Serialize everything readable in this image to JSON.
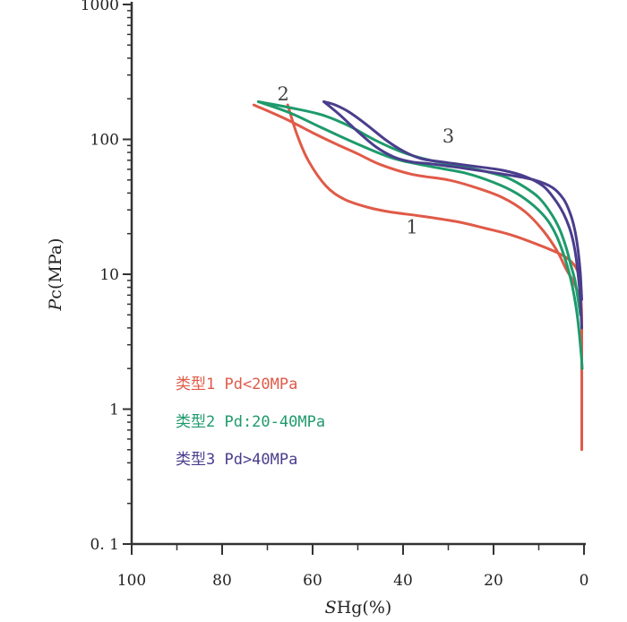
{
  "chart_data": {
    "type": "line",
    "xlabel_italic": "S",
    "xlabel_rest": "Hg(%)",
    "ylabel_italic": "P",
    "ylabel_rest": "c(MPa)",
    "x_reversed": true,
    "xlim": [
      100,
      0
    ],
    "ylim": [
      0.1,
      1000
    ],
    "y_scale": "log",
    "grid": false,
    "legend_placement": "inside-lower-left",
    "x_ticks": [
      "100",
      "80",
      "60",
      "40",
      "20",
      "0"
    ],
    "x_tick_values": [
      100,
      80,
      60,
      40,
      20,
      0
    ],
    "y_ticks": [
      "0. 1",
      "1",
      "10",
      "100",
      "1000"
    ],
    "y_tick_values": [
      0.1,
      1,
      10,
      100,
      1000
    ],
    "series": [
      {
        "name": "类型1 Pd<20MPa",
        "label": "1",
        "label_at": [
          38,
          20
        ],
        "color": "#e05a48",
        "branches": [
          {
            "x": [
              0.5,
              0.5,
              0.6,
              0.8,
              1.2,
              2,
              3.5,
              6,
              10,
              16,
              22,
              28,
              36,
              43,
              48,
              53,
              57,
              61,
              63.5,
              65.5
            ],
            "y": [
              0.5,
              4,
              6,
              8,
              10,
              11.5,
              13,
              14.5,
              16.5,
              19.5,
              22,
              24.5,
              27,
              29,
              31.5,
              36,
              45,
              70,
              110,
              180
            ]
          },
          {
            "x": [
              73,
              66,
              60,
              55,
              50,
              45,
              38,
              30,
              24,
              18,
              13,
              9,
              6,
              4,
              2.5,
              1.5,
              1
            ],
            "y": [
              180,
              142,
              112,
              93,
              78,
              65,
              55,
              50,
              44,
              37,
              29,
              21,
              15,
              11,
              9,
              7.5,
              6
            ]
          }
        ]
      },
      {
        "name": "类型2 Pd:20-40MPa",
        "label": "2",
        "label_at": [
          66.5,
          195
        ],
        "color": "#1e9a6c",
        "branches": [
          {
            "x": [
              72,
              65,
              58,
              50,
              42,
              34,
              26,
              20,
              15,
              11,
              8,
              6,
              4.5,
              3.2,
              2.2,
              1.5,
              1,
              0.6,
              0.4
            ],
            "y": [
              190,
              157,
              122,
              92,
              72,
              63,
              56,
              48,
              40,
              32,
              25,
              19,
              14,
              10,
              7,
              5,
              3.5,
              2.5,
              2
            ]
          },
          {
            "x": [
              72,
              65,
              58,
              52,
              46,
              40,
              34,
              28,
              22,
              17,
              13,
              10,
              7.5,
              5.5,
              4,
              3,
              2,
              1.3,
              0.8
            ],
            "y": [
              190,
              172,
              152,
              126,
              98,
              80,
              70,
              64,
              58,
              52,
              44,
              37,
              29,
              22,
              16,
              12,
              9,
              6.5,
              5
            ]
          }
        ]
      },
      {
        "name": "类型3 Pd>40MPa",
        "label": "3",
        "label_at": [
          30,
          95
        ],
        "color": "#4a3d8c",
        "branches": [
          {
            "x": [
              57.5,
              55,
              52,
              48,
              44,
              40,
              36,
              30,
              24,
              18,
              13,
              9,
              6.5,
              4.5,
              3,
              2,
              1.3,
              0.8,
              0.5
            ],
            "y": [
              190,
              180,
              160,
              128,
              100,
              82,
              72,
              67,
              63,
              59,
              53,
              45,
              36,
              28,
              21,
              15,
              10,
              6.5,
              4
            ]
          },
          {
            "x": [
              57.5,
              54,
              50,
              46,
              42,
              38,
              34,
              28,
              22,
              16,
              11,
              7,
              4.5,
              3,
              2,
              1.3,
              0.8,
              0.5
            ],
            "y": [
              190,
              152,
              114,
              88,
              74,
              68,
              66,
              62,
              58,
              54,
              50,
              44,
              36,
              28,
              21,
              15,
              10,
              6.5
            ]
          }
        ]
      }
    ]
  }
}
